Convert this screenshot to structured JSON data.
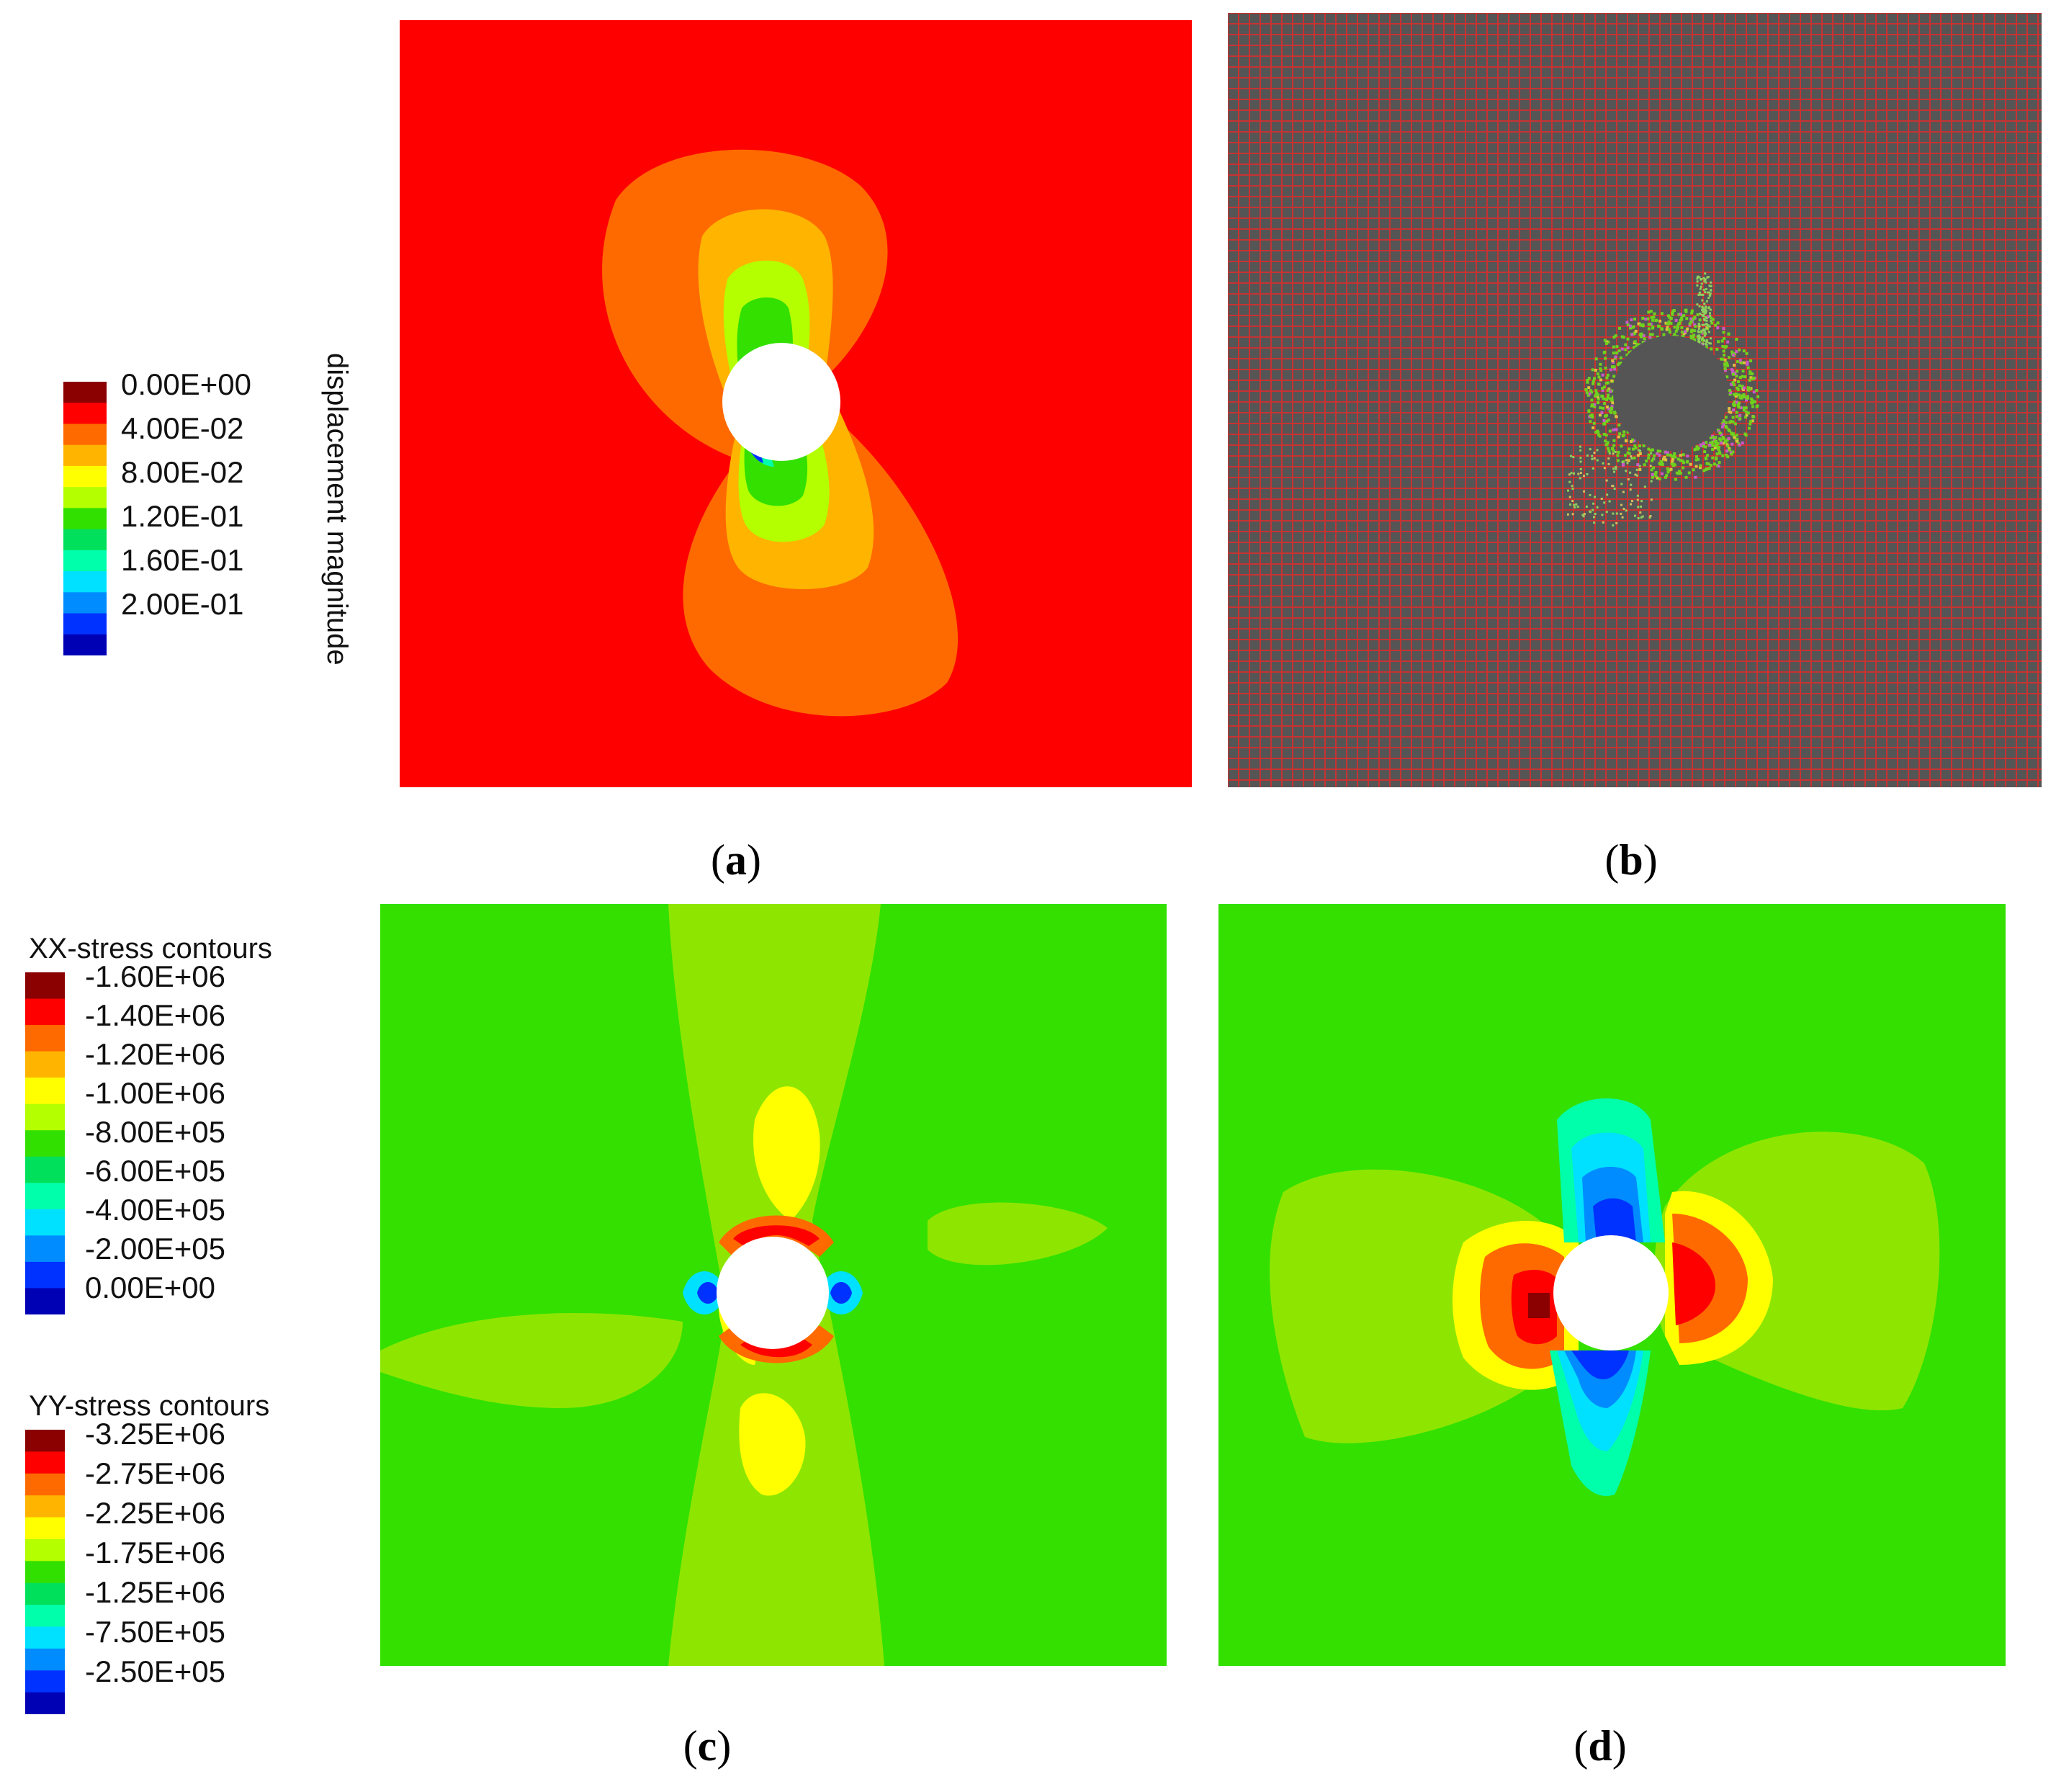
{
  "figure": {
    "panels": [
      {
        "id": "a",
        "caption": "a"
      },
      {
        "id": "b",
        "caption": "b"
      },
      {
        "id": "c",
        "caption": "c"
      },
      {
        "id": "d",
        "caption": "d"
      }
    ]
  },
  "legends": {
    "displacement": {
      "title": "displacement magnitude",
      "labels": [
        "0.00E+00",
        "4.00E-02",
        "8.00E-02",
        "1.20E-01",
        "1.60E-01",
        "2.00E-01"
      ],
      "colors": [
        "#8b0000",
        "#ff0000",
        "#ff6a00",
        "#ffb400",
        "#ffff00",
        "#b4ff00",
        "#32e000",
        "#00e05a",
        "#00ffaa",
        "#00e0ff",
        "#008cff",
        "#0032ff",
        "#0000b4"
      ]
    },
    "xx_stress": {
      "title": "XX-stress contours",
      "labels": [
        "-1.60E+06",
        "-1.40E+06",
        "-1.20E+06",
        "-1.00E+06",
        "-8.00E+05",
        "-6.00E+05",
        "-4.00E+05",
        "-2.00E+05",
        "0.00E+00"
      ],
      "colors": [
        "#8b0000",
        "#ff0000",
        "#ff6a00",
        "#ffb400",
        "#ffff00",
        "#b4ff00",
        "#32e000",
        "#00e05a",
        "#00ffaa",
        "#00e0ff",
        "#008cff",
        "#0032ff",
        "#0000b4"
      ]
    },
    "yy_stress": {
      "title": "YY-stress contours",
      "labels": [
        "-3.25E+06",
        "-2.75E+06",
        "-2.25E+06",
        "-1.75E+06",
        "-1.25E+06",
        "-7.50E+05",
        "-2.50E+05"
      ],
      "colors": [
        "#8b0000",
        "#ff0000",
        "#ff6a00",
        "#ffb400",
        "#ffff00",
        "#b4ff00",
        "#32e000",
        "#00e05a",
        "#00ffaa",
        "#00e0ff",
        "#008cff",
        "#0032ff",
        "#0000b4"
      ]
    }
  },
  "colors": {
    "red": "#ff0000",
    "orange": "#ff6a00",
    "yellow": "#ffff00",
    "yellowgreen": "#b4ff00",
    "green": "#33e000",
    "grid_bg": "#555555",
    "grid_line": "#c83232",
    "hole": "#ffffff"
  }
}
